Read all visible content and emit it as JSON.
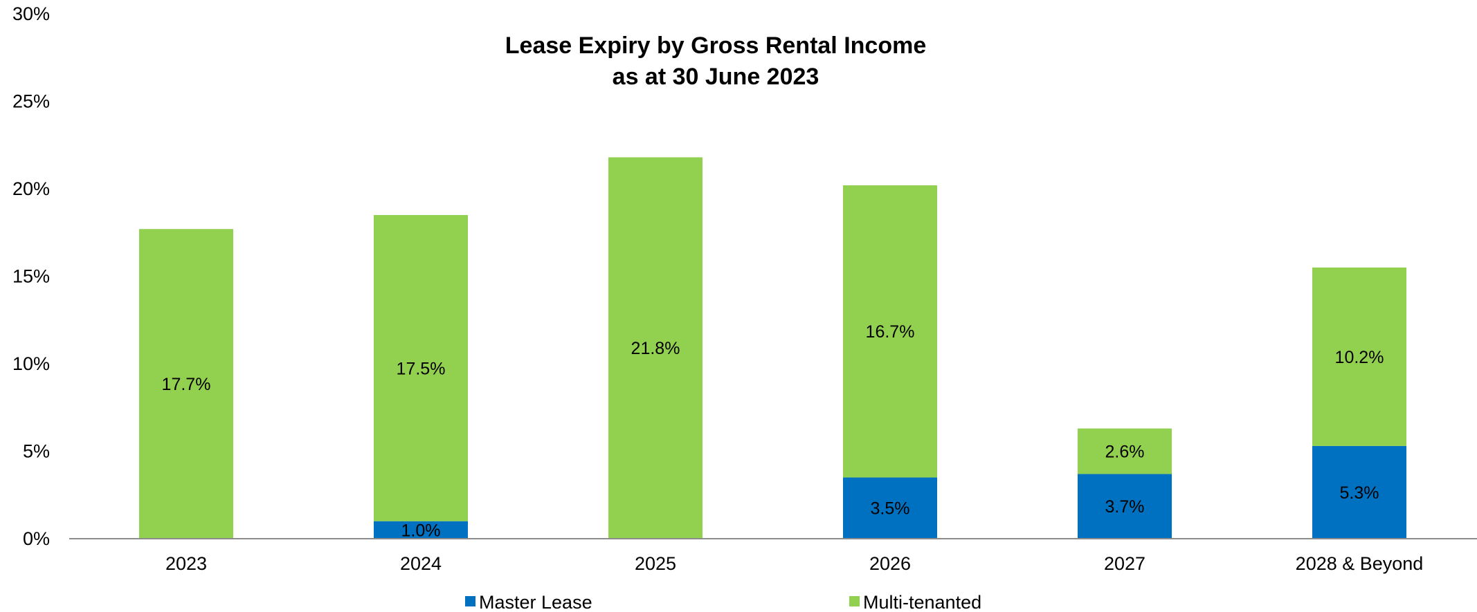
{
  "chart_data": {
    "type": "bar",
    "stacked": true,
    "title": "Lease Expiry by Gross Rental Income",
    "subtitle": "as at 30 June 2023",
    "categories": [
      "2023",
      "2024",
      "2025",
      "2026",
      "2027",
      "2028 & Beyond"
    ],
    "series": [
      {
        "name": "Master Lease",
        "color": "#0070C0",
        "values": [
          0,
          1.0,
          0,
          3.5,
          3.7,
          5.3
        ],
        "labels": [
          "",
          "1.0%",
          "",
          "3.5%",
          "3.7%",
          "5.3%"
        ]
      },
      {
        "name": "Multi-tenanted",
        "color": "#92D050",
        "values": [
          17.7,
          17.5,
          21.8,
          16.7,
          2.6,
          10.2
        ],
        "labels": [
          "17.7%",
          "17.5%",
          "21.8%",
          "16.7%",
          "2.6%",
          "10.2%"
        ]
      }
    ],
    "yticks": [
      "0%",
      "5%",
      "10%",
      "15%",
      "20%",
      "25%",
      "30%"
    ],
    "ylim": [
      0,
      30
    ],
    "xlabel": "",
    "ylabel": "",
    "grid": false,
    "legend_position": "bottom"
  }
}
